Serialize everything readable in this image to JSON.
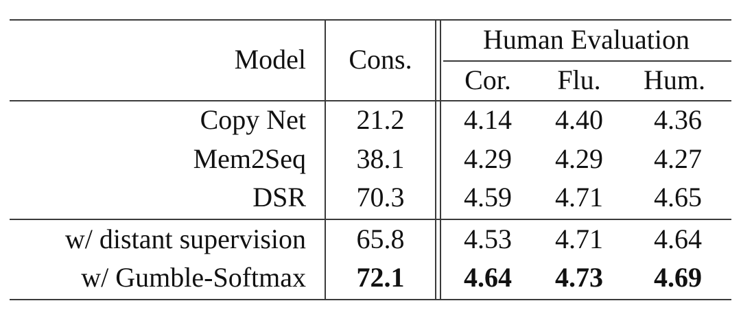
{
  "table": {
    "header": {
      "model": "Model",
      "cons": "Cons.",
      "group": "Human Evaluation",
      "cor": "Cor.",
      "flu": "Flu.",
      "hum": "Hum."
    },
    "rows": [
      {
        "model": "Copy Net",
        "cons": "21.2",
        "cor": "4.14",
        "flu": "4.40",
        "hum": "4.36",
        "bold": false
      },
      {
        "model": "Mem2Seq",
        "cons": "38.1",
        "cor": "4.29",
        "flu": "4.29",
        "hum": "4.27",
        "bold": false
      },
      {
        "model": "DSR",
        "cons": "70.3",
        "cor": "4.59",
        "flu": "4.71",
        "hum": "4.65",
        "bold": false
      },
      {
        "model": "w/ distant supervision",
        "cons": "65.8",
        "cor": "4.53",
        "flu": "4.71",
        "hum": "4.64",
        "bold": false
      },
      {
        "model": "w/ Gumble-Softmax",
        "cons": "72.1",
        "cor": "4.64",
        "flu": "4.73",
        "hum": "4.69",
        "bold": true
      }
    ]
  }
}
